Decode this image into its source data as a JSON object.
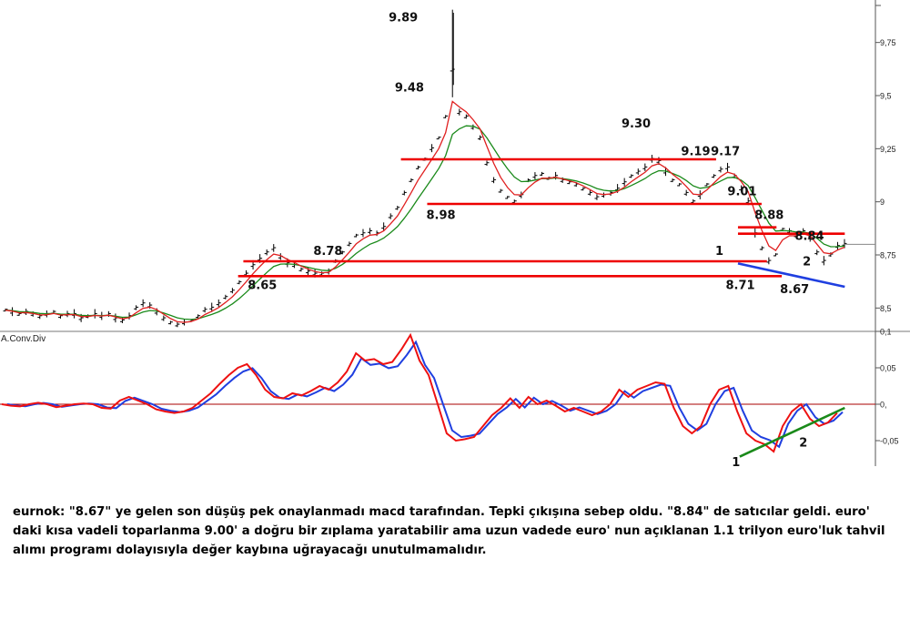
{
  "chart_data": [
    {
      "type": "line",
      "panel": "price",
      "grid": false,
      "y_ticks": [
        "9,75",
        "9,5",
        "9,25",
        "9",
        "8,75",
        "8,5"
      ],
      "ylim": [
        8.39,
        9.95
      ],
      "series": [],
      "price_path": [
        8.49,
        8.48,
        8.47,
        8.48,
        8.47,
        8.46,
        8.47,
        8.48,
        8.46,
        8.47,
        8.47,
        8.45,
        8.46,
        8.47,
        8.46,
        8.47,
        8.45,
        8.44,
        8.46,
        8.5,
        8.52,
        8.51,
        8.48,
        8.45,
        8.43,
        8.42,
        8.43,
        8.44,
        8.46,
        8.49,
        8.5,
        8.52,
        8.55,
        8.58,
        8.62,
        8.66,
        8.7,
        8.73,
        8.76,
        8.78,
        8.74,
        8.71,
        8.7,
        8.68,
        8.67,
        8.66,
        8.66,
        8.67,
        8.72,
        8.76,
        8.8,
        8.84,
        8.85,
        8.86,
        8.85,
        8.88,
        8.93,
        8.97,
        9.04,
        9.1,
        9.16,
        9.2,
        9.25,
        9.3,
        9.4,
        9.62,
        9.42,
        9.4,
        9.35,
        9.3,
        9.18,
        9.1,
        9.05,
        9.02,
        9.0,
        9.03,
        9.1,
        9.12,
        9.13,
        9.11,
        9.12,
        9.1,
        9.09,
        9.08,
        9.06,
        9.04,
        9.02,
        9.03,
        9.04,
        9.06,
        9.09,
        9.12,
        9.14,
        9.16,
        9.2,
        9.19,
        9.14,
        9.1,
        9.08,
        9.04,
        9.0,
        9.03,
        9.08,
        9.12,
        9.15,
        9.16,
        9.12,
        9.06,
        9.0,
        8.85,
        8.78,
        8.72,
        8.75,
        8.87,
        8.86,
        8.84,
        8.86,
        8.83,
        8.76,
        8.72,
        8.75,
        8.79,
        8.8
      ],
      "levels": [
        {
          "value": 9.2,
          "from": 0.458,
          "to": 0.818
        },
        {
          "value": 8.99,
          "from": 0.488,
          "to": 0.87
        },
        {
          "value": 8.72,
          "from": 0.278,
          "to": 0.876
        },
        {
          "value": 8.65,
          "from": 0.272,
          "to": 0.893
        },
        {
          "value": 8.85,
          "from": 0.843,
          "to": 0.965
        },
        {
          "value": 8.88,
          "from": 0.843,
          "to": 0.887
        }
      ],
      "trendline": {
        "from": [
          0.843,
          8.71
        ],
        "to": [
          0.965,
          8.6
        ]
      },
      "annotations": [
        {
          "text": "9.89",
          "pos": [
            0.444,
            9.85
          ]
        },
        {
          "text": "9.48",
          "pos": [
            0.451,
            9.52
          ]
        },
        {
          "text": "9.30",
          "pos": [
            0.71,
            9.35
          ]
        },
        {
          "text": "9.19",
          "pos": [
            0.778,
            9.22
          ]
        },
        {
          "text": "9.17",
          "pos": [
            0.812,
            9.22
          ]
        },
        {
          "text": "9.01",
          "pos": [
            0.831,
            9.03
          ]
        },
        {
          "text": "8.88",
          "pos": [
            0.862,
            8.92
          ]
        },
        {
          "text": "8.84",
          "pos": [
            0.908,
            8.82
          ]
        },
        {
          "text": "8.98",
          "pos": [
            0.487,
            8.92
          ]
        },
        {
          "text": "8.78",
          "pos": [
            0.358,
            8.75
          ]
        },
        {
          "text": "8.65",
          "pos": [
            0.283,
            8.59
          ]
        },
        {
          "text": "8.71",
          "pos": [
            0.829,
            8.59
          ]
        },
        {
          "text": "8.67",
          "pos": [
            0.891,
            8.57
          ]
        },
        {
          "text": "1",
          "pos": [
            0.817,
            8.75
          ]
        },
        {
          "text": "2",
          "pos": [
            0.917,
            8.7
          ]
        }
      ],
      "colors": {
        "price": "#000000",
        "ma_fast": "#e02020",
        "ma_slow": "#1a8a1a",
        "level": "#ee0000",
        "trendline": "#1f3fe0"
      }
    },
    {
      "type": "line",
      "panel": "indicator",
      "title": "A.Conv.Div",
      "grid": false,
      "y_ticks": [
        "0,1",
        "0,05",
        "0,",
        "-0,05"
      ],
      "ylim": [
        -0.085,
        0.1
      ],
      "series": [],
      "values": [
        0.0,
        -0.002,
        -0.003,
        0.0,
        0.002,
        0.0,
        -0.004,
        -0.002,
        0.0,
        0.001,
        0.0,
        -0.005,
        -0.006,
        0.005,
        0.01,
        0.005,
        0.0,
        -0.007,
        -0.01,
        -0.012,
        -0.01,
        -0.005,
        0.005,
        0.015,
        0.028,
        0.04,
        0.05,
        0.055,
        0.04,
        0.02,
        0.01,
        0.008,
        0.015,
        0.012,
        0.018,
        0.025,
        0.02,
        0.03,
        0.045,
        0.07,
        0.06,
        0.062,
        0.055,
        0.058,
        0.075,
        0.095,
        0.06,
        0.04,
        0.0,
        -0.04,
        -0.05,
        -0.048,
        -0.045,
        -0.03,
        -0.015,
        -0.005,
        0.008,
        -0.005,
        0.01,
        0.0,
        0.005,
        -0.002,
        -0.01,
        -0.005,
        -0.01,
        -0.015,
        -0.01,
        0.0,
        0.02,
        0.01,
        0.02,
        0.025,
        0.03,
        0.028,
        -0.005,
        -0.03,
        -0.04,
        -0.03,
        0.0,
        0.02,
        0.025,
        -0.01,
        -0.04,
        -0.05,
        -0.055,
        -0.065,
        -0.03,
        -0.01,
        0.0,
        -0.02,
        -0.03,
        -0.025,
        -0.012
      ],
      "signal_lag": 1,
      "trendline": {
        "from": [
          0.845,
          -0.072
        ],
        "to": [
          0.965,
          -0.005
        ]
      },
      "annotations": [
        {
          "text": "1",
          "pos": [
            0.836,
            -0.085
          ]
        },
        {
          "text": "2",
          "pos": [
            0.913,
            -0.058
          ]
        }
      ],
      "colors": {
        "macd": "#ee1111",
        "signal": "#1f3fe0",
        "zero": "#aa0000",
        "trendline": "#1a8a1a"
      }
    }
  ],
  "commentary": "eurnok: \"8.67\" ye gelen son düşüş pek onaylanmadı macd tarafından. Tepki çıkışına sebep oldu. \"8.84\" de satıcılar geldi. euro' daki kısa vadeli toparlanma 9.00' a doğru bir zıplama yaratabilir ama uzun vadede euro' nun açıklanan 1.1 trilyon euro'luk tahvil alımı programı dolayısıyla değer kaybına uğrayacağı unutulmamalıdır."
}
